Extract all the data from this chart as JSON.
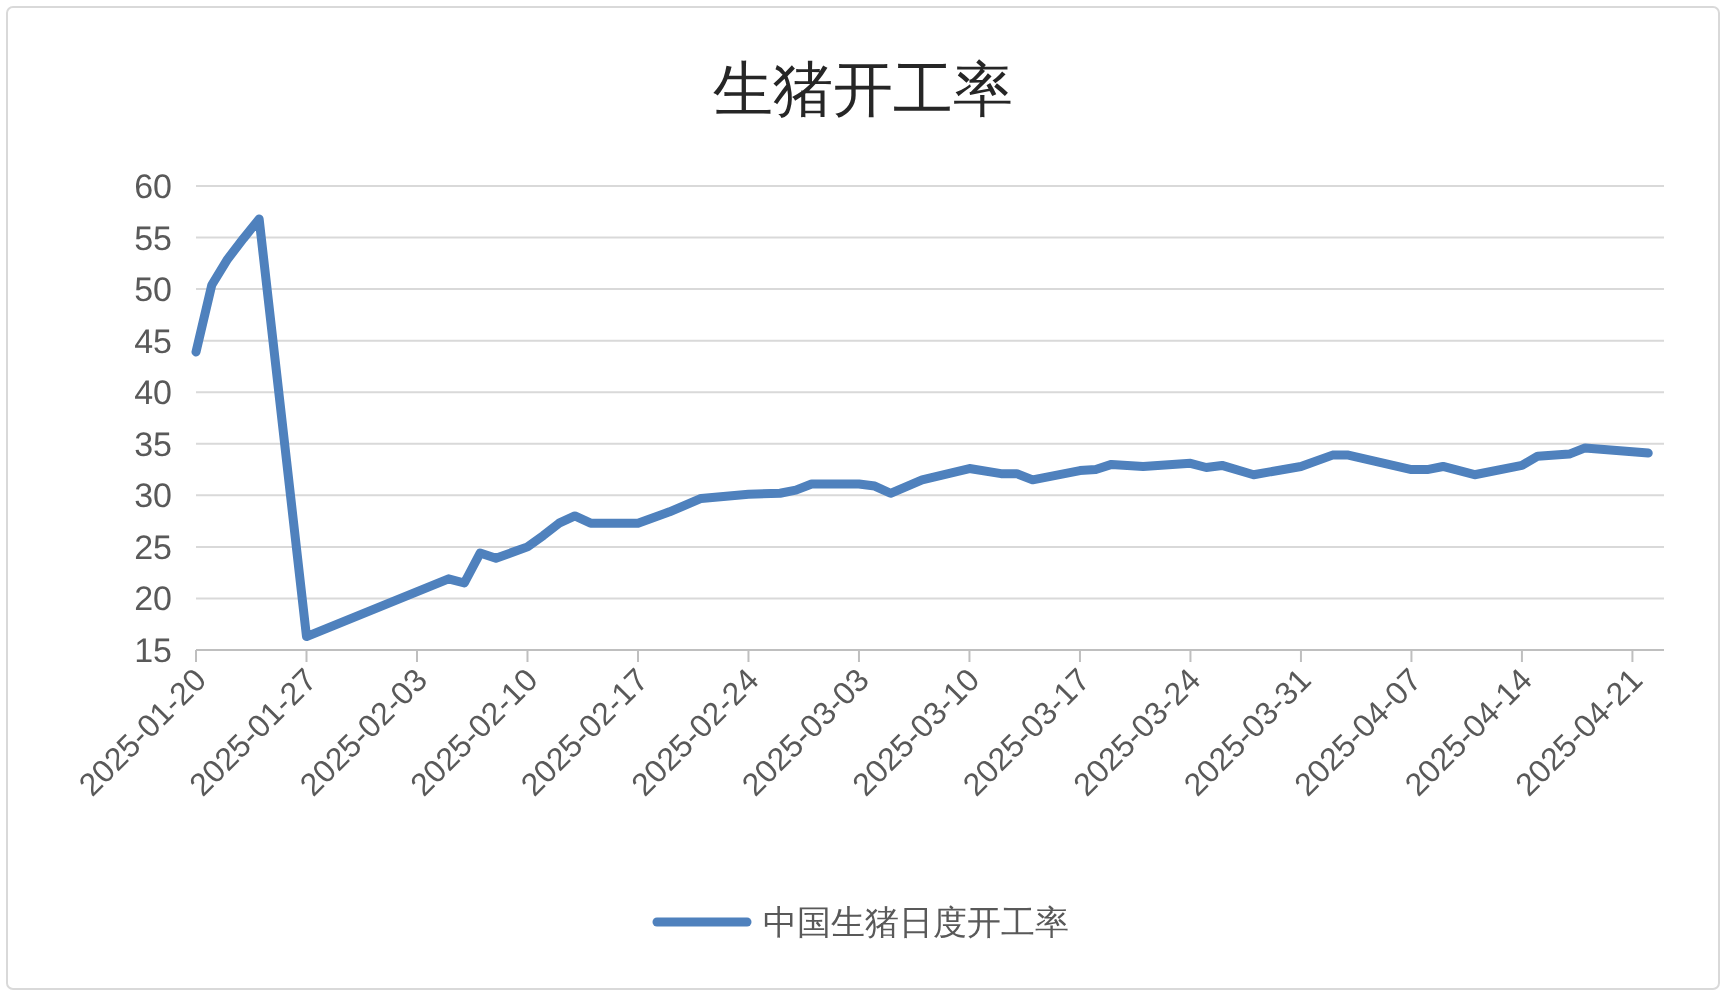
{
  "chart_data": {
    "type": "line",
    "title": "生猪开工率",
    "x": [
      "2025-01-20",
      "2025-01-21",
      "2025-01-22",
      "2025-01-23",
      "2025-01-24",
      "2025-01-27",
      "2025-02-05",
      "2025-02-06",
      "2025-02-07",
      "2025-02-08",
      "2025-02-10",
      "2025-02-11",
      "2025-02-12",
      "2025-02-13",
      "2025-02-14",
      "2025-02-17",
      "2025-02-19",
      "2025-02-21",
      "2025-02-24",
      "2025-02-26",
      "2025-02-27",
      "2025-02-28",
      "2025-03-03",
      "2025-03-04",
      "2025-03-05",
      "2025-03-07",
      "2025-03-10",
      "2025-03-12",
      "2025-03-13",
      "2025-03-14",
      "2025-03-17",
      "2025-03-18",
      "2025-03-19",
      "2025-03-21",
      "2025-03-24",
      "2025-03-25",
      "2025-03-26",
      "2025-03-28",
      "2025-03-31",
      "2025-04-02",
      "2025-04-03",
      "2025-04-07",
      "2025-04-08",
      "2025-04-09",
      "2025-04-11",
      "2025-04-14",
      "2025-04-15",
      "2025-04-17",
      "2025-04-18",
      "2025-04-22"
    ],
    "series": [
      {
        "name": "中国生猪日度开工率",
        "color": "#4f81bd",
        "values": [
          43.9,
          50.4,
          52.9,
          54.9,
          56.8,
          16.3,
          21.9,
          21.5,
          24.4,
          23.9,
          25.0,
          26.1,
          27.3,
          28.0,
          27.3,
          27.3,
          28.4,
          29.7,
          30.1,
          30.2,
          30.5,
          31.1,
          31.1,
          30.9,
          30.2,
          31.5,
          32.6,
          32.1,
          32.1,
          31.5,
          32.4,
          32.5,
          33.0,
          32.8,
          33.1,
          32.7,
          32.9,
          32.0,
          32.8,
          33.9,
          33.9,
          32.5,
          32.5,
          32.8,
          32.0,
          32.9,
          33.8,
          34.0,
          34.6,
          34.1
        ]
      }
    ],
    "xlim": [
      "2025-01-20",
      "2025-04-23"
    ],
    "xticks": [
      "2025-01-20",
      "2025-01-27",
      "2025-02-03",
      "2025-02-10",
      "2025-02-17",
      "2025-02-24",
      "2025-03-03",
      "2025-03-10",
      "2025-03-17",
      "2025-03-24",
      "2025-03-31",
      "2025-04-07",
      "2025-04-14",
      "2025-04-21"
    ],
    "ylim": [
      15,
      60
    ],
    "yticks": [
      15,
      20,
      25,
      30,
      35,
      40,
      45,
      50,
      55,
      60
    ],
    "grid": "y",
    "legend": "bottom",
    "marker": "none",
    "line_style": "solid"
  }
}
